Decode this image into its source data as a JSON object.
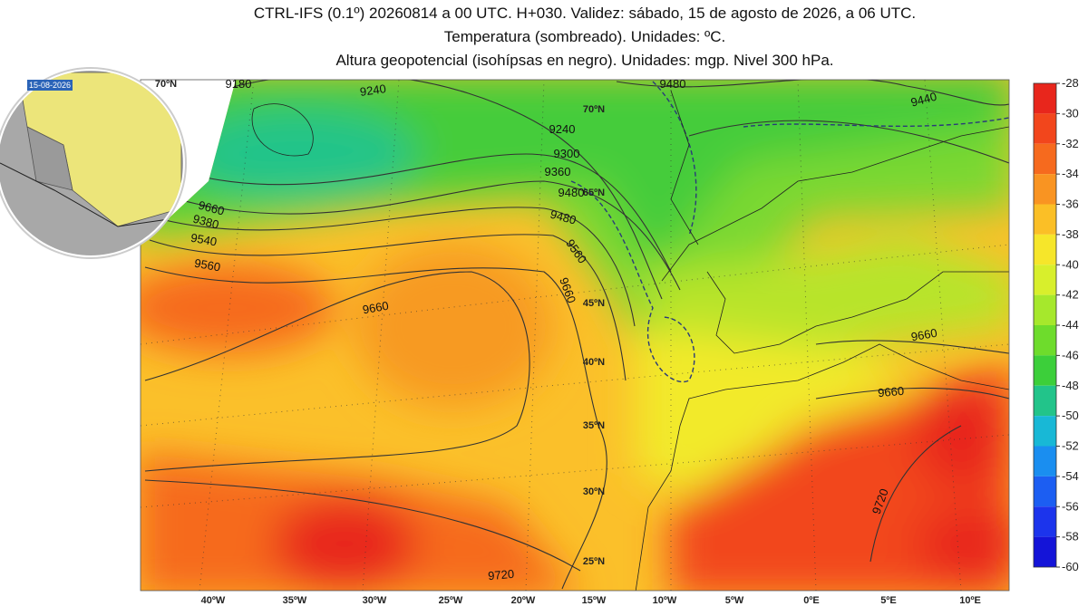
{
  "header": {
    "lines": [
      "CTRL-IFS (0.1º) 20260814 a 00 UTC. H+030. Validez: sábado, 15 de agosto de 2026, a 06 UTC.",
      "Temperatura (sombreado). Unidades: ºC.",
      "Altura geopotencial (isohípsas en negro). Unidades: mgp. Nivel 300 hPa."
    ]
  },
  "inset": {
    "date": "15-08-2026"
  },
  "map": {
    "lat_labels": [
      "70ºN",
      "70ºN",
      "65ºN",
      "45ºN",
      "40ºN",
      "35ºN",
      "30ºN",
      "25ºN"
    ],
    "lon_labels": [
      "40ºW",
      "35ºW",
      "30ºW",
      "25ºW",
      "20ºW",
      "15ºW",
      "10ºW",
      "5ºW",
      "0ºE",
      "5ºE",
      "10ºE"
    ],
    "contour_labels": [
      "9180",
      "9240",
      "9480",
      "9440",
      "9240",
      "9300",
      "9360",
      "9480",
      "9660",
      "9380",
      "9540",
      "9560",
      "9480",
      "9560",
      "9660",
      "9660",
      "9660",
      "9660",
      "9720",
      "9720"
    ]
  },
  "colorbar": {
    "ticks": [
      -28,
      -30,
      -32,
      -34,
      -36,
      -38,
      -40,
      -42,
      -44,
      -46,
      -48,
      -50,
      -52,
      -54,
      -56,
      -58,
      -60
    ],
    "colors": [
      "#e8261c",
      "#f2461c",
      "#f66a1e",
      "#f99422",
      "#fbbf26",
      "#f6e62a",
      "#d8ef2c",
      "#a6e82c",
      "#6edc2c",
      "#3ccf3a",
      "#22c48a",
      "#18b8d6",
      "#1a8ef0",
      "#1c5ef2",
      "#1c34ec",
      "#1414d8"
    ]
  }
}
